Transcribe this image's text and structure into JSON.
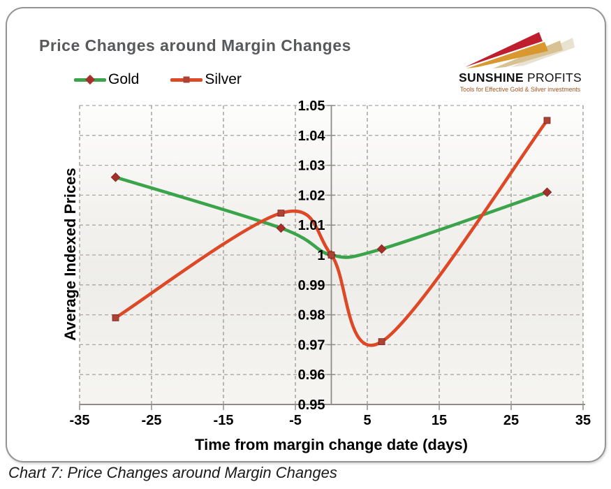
{
  "header": {
    "title": "Price Changes around Margin Changes"
  },
  "logo": {
    "brand_bold": "SUNSHINE",
    "brand_light": " PROFITS",
    "tagline": "Tools for Effective Gold & Silver investments",
    "arrow_colors": [
      "#bf1e2e",
      "#d9982f",
      "#d8c193",
      "#e9e2d0"
    ]
  },
  "caption": "Chart 7: Price Changes around Margin Changes",
  "colors": {
    "card_border": "#949494",
    "title_text": "#58595b",
    "grid": "#aaa8a4",
    "axis": "#8e8c89",
    "tick_text": "#000000",
    "gold_line": "#3ba44a",
    "silver_line": "#dd4827",
    "marker": "#a5332b",
    "plot_bg_top": "#fdfdfc",
    "plot_bg_mid": "#eeedea",
    "plot_bg_bottom": "#f6f5f2"
  },
  "chart_data": {
    "type": "line",
    "title": "Price Changes around Margin Changes",
    "xlabel": "Time from margin change date (days)",
    "ylabel": "Average Indexed Prices",
    "xlim": [
      -35,
      35
    ],
    "ylim": [
      0.95,
      1.05
    ],
    "x_ticks": [
      -35,
      -25,
      -15,
      -5,
      5,
      15,
      25,
      35
    ],
    "x_tick_labels": [
      "-35",
      "-25",
      "-15",
      "-5",
      "5",
      "15",
      "25",
      "35"
    ],
    "y_ticks": [
      1.05,
      1.04,
      1.03,
      1.02,
      1.01,
      1.0,
      0.99,
      0.98,
      0.97,
      0.96,
      0.95
    ],
    "y_tick_labels": [
      "1.05",
      "1.04",
      "1.03",
      "1.02",
      "1.01",
      "1",
      "0.99",
      "0.98",
      "0.97",
      "0.96",
      "0.95"
    ],
    "grid": "dashed",
    "smooth": true,
    "legend_position": "top-left",
    "x": [
      -30,
      -7,
      0,
      7,
      30
    ],
    "series": [
      {
        "name": "Gold",
        "color": "#3ba44a",
        "marker": "diamond",
        "marker_color": "#a5302b",
        "values": [
          1.026,
          1.009,
          1.0,
          1.002,
          1.021
        ]
      },
      {
        "name": "Silver",
        "color": "#dd4827",
        "marker": "square",
        "marker_color": "#ac4335",
        "values": [
          0.979,
          1.014,
          1.0,
          0.971,
          1.045
        ]
      }
    ]
  }
}
